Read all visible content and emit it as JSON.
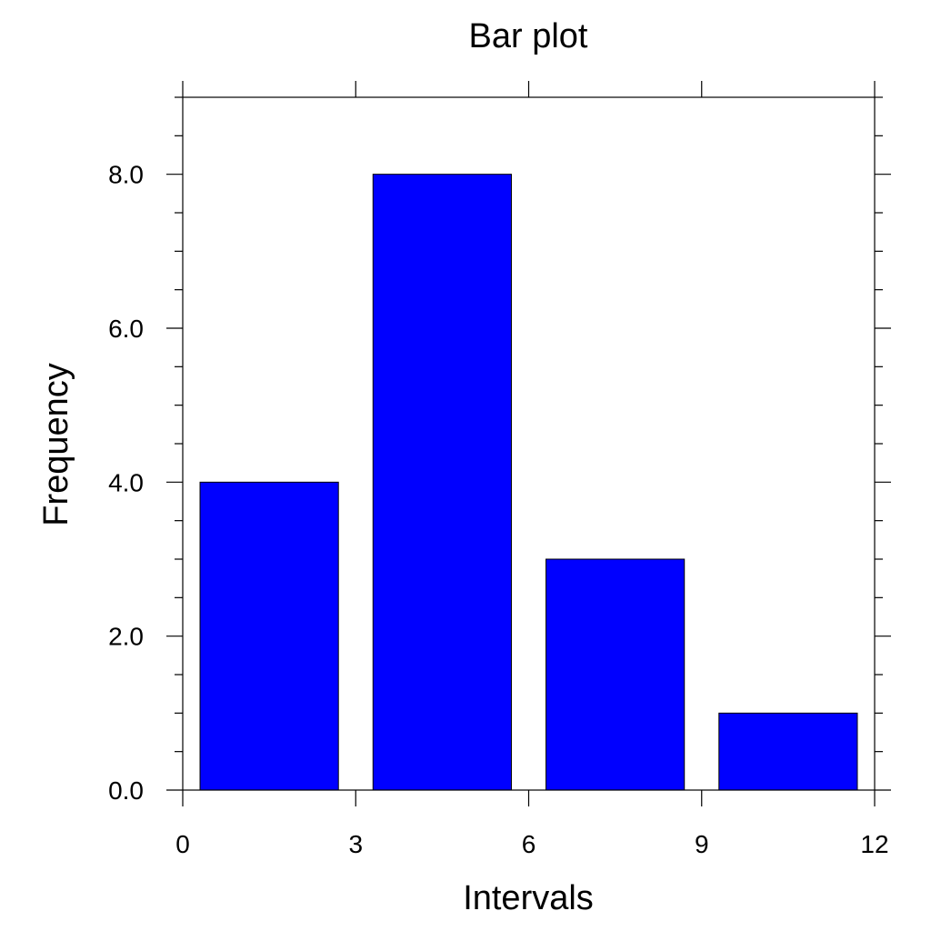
{
  "chart_data": {
    "type": "bar",
    "title": "Bar plot",
    "xlabel": "Intervals",
    "ylabel": "Frequency",
    "xlim": [
      0,
      12
    ],
    "ylim": [
      0,
      9
    ],
    "x_ticks": [
      0,
      3,
      6,
      9,
      12
    ],
    "x_tick_labels": [
      "0",
      "3",
      "6",
      "9",
      "12"
    ],
    "y_ticks": [
      0,
      2,
      4,
      6,
      8
    ],
    "y_tick_labels": [
      "0.0",
      "2.0",
      "4.0",
      "6.0",
      "8.0"
    ],
    "y_minor_step": 0.5,
    "bars": [
      {
        "x_start": 0.3,
        "x_end": 2.7,
        "value": 4
      },
      {
        "x_start": 3.3,
        "x_end": 5.7,
        "value": 8
      },
      {
        "x_start": 6.3,
        "x_end": 8.7,
        "value": 3
      },
      {
        "x_start": 9.3,
        "x_end": 11.7,
        "value": 1
      }
    ],
    "bar_color": "#0000ff",
    "grid": false,
    "legend": "none"
  }
}
